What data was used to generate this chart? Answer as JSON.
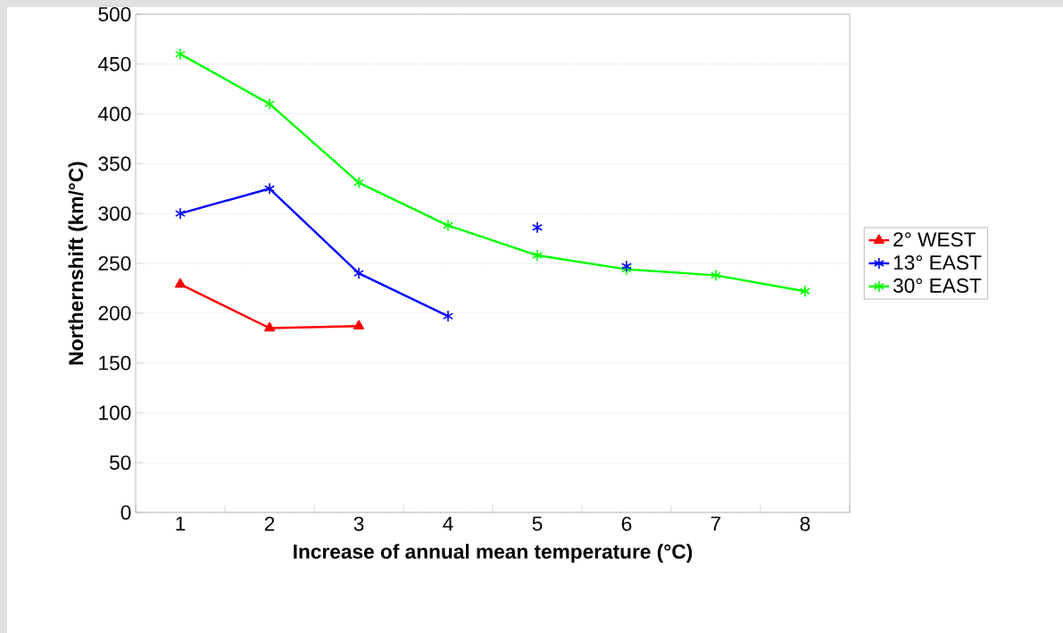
{
  "chart_data": {
    "type": "line",
    "xlabel": "Increase of annual mean temperature (°C)",
    "ylabel": "Northernshift (km/°C)",
    "categories": [
      "1",
      "2",
      "3",
      "4",
      "5",
      "6",
      "7",
      "8"
    ],
    "series": [
      {
        "name": "2° WEST",
        "color": "#ff0000",
        "marker": "triangle",
        "values": [
          229,
          185,
          187,
          null,
          null,
          null,
          null,
          null
        ]
      },
      {
        "name": "13° EAST",
        "color": "#0000ff",
        "marker": "cross",
        "values": [
          300,
          325,
          240,
          197,
          null,
          null,
          null,
          null
        ]
      },
      {
        "name": "30° EAST",
        "color": "#00ff00",
        "marker": "cross",
        "values": [
          460,
          410,
          331,
          288,
          258,
          244,
          238,
          222
        ]
      },
      {
        "type": "scatter",
        "color": "#0000ff",
        "marker": "cross",
        "values": [
          null,
          null,
          null,
          null,
          286,
          247,
          null,
          null
        ]
      }
    ],
    "ylim": [
      0,
      500
    ],
    "yticks": [
      0,
      50,
      100,
      150,
      200,
      250,
      300,
      350,
      400,
      450,
      500
    ],
    "grid": "y",
    "legend": "right"
  }
}
